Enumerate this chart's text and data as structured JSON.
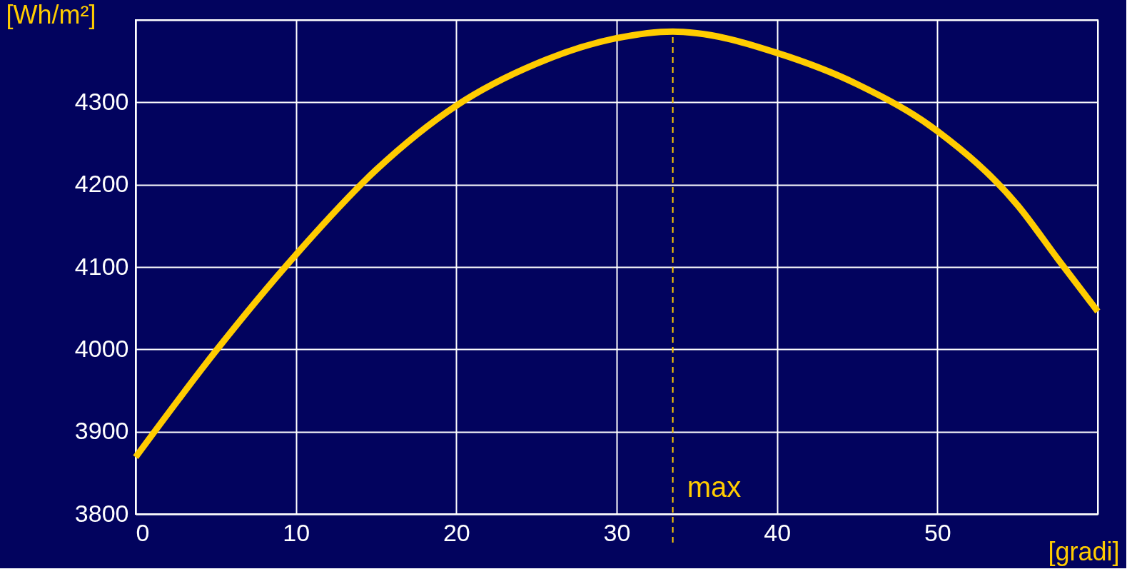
{
  "chart_data": {
    "type": "line",
    "xlabel": "[gradi]",
    "ylabel": "[Wh/m²]",
    "x": [
      0,
      5,
      10,
      15,
      20,
      25,
      30,
      33.5,
      35,
      40,
      45,
      50,
      55,
      57.5,
      60
    ],
    "series": [
      {
        "color": "#ffcc00",
        "values": [
          3869,
          3998,
          4115,
          4218,
          4296,
          4347,
          4378,
          4386,
          4384,
          4360,
          4322,
          4265,
          4175,
          4110,
          4046
        ]
      }
    ],
    "xlim": [
      0,
      60
    ],
    "xticks": [
      0,
      10,
      20,
      30,
      40,
      50,
      {
        "value": 60,
        "label": null
      }
    ],
    "ylim": [
      3800,
      4400
    ],
    "yticks": [
      3800,
      3900,
      4000,
      4100,
      4200,
      4300,
      {
        "value": 4400,
        "label": null
      }
    ],
    "grid": true,
    "marker": "none",
    "line_style": "solid",
    "ref_lines": [
      {
        "axis": "x",
        "value": 33.5,
        "label": "max",
        "color": "#ffcc00",
        "line_style": "dashed"
      }
    ]
  }
}
